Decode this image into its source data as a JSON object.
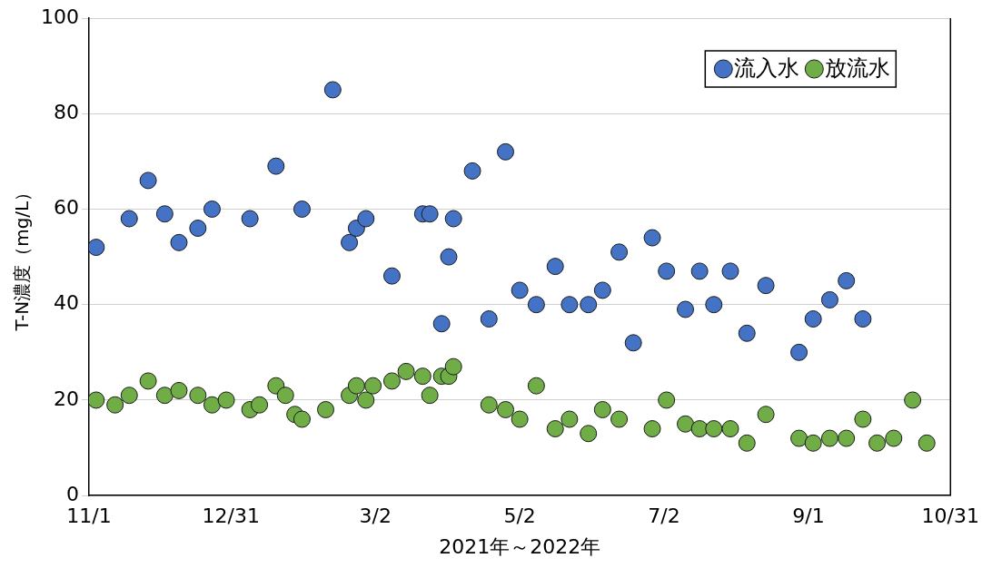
{
  "chart_data": {
    "type": "scatter",
    "xlabel": "2021年～2022年",
    "ylabel": "T-N濃度（mg/L）",
    "xlim": [
      "2021-11-01",
      "2022-10-31"
    ],
    "xticks": [
      {
        "value": "2021-11-01",
        "label": "11/1"
      },
      {
        "value": "2021-12-31",
        "label": "12/31"
      },
      {
        "value": "2022-03-02",
        "label": "3/2"
      },
      {
        "value": "2022-05-02",
        "label": "5/2"
      },
      {
        "value": "2022-07-02",
        "label": "7/2"
      },
      {
        "value": "2022-09-01",
        "label": "9/1"
      },
      {
        "value": "2022-10-31",
        "label": "10/31"
      }
    ],
    "ylim": [
      0,
      100
    ],
    "yticks": [
      0,
      20,
      40,
      60,
      80,
      100
    ],
    "grid": "y",
    "legend": "top right",
    "marker": "circle",
    "series": [
      {
        "name": "流入水",
        "color": "#4472c4",
        "x": [
          "2021-11-04",
          "2021-11-18",
          "2021-11-26",
          "2021-12-03",
          "2021-12-09",
          "2021-12-17",
          "2021-12-23",
          "2022-01-08",
          "2022-01-19",
          "2022-01-30",
          "2022-02-12",
          "2022-02-19",
          "2022-02-22",
          "2022-02-26",
          "2022-03-09",
          "2022-03-22",
          "2022-03-25",
          "2022-03-30",
          "2022-04-02",
          "2022-04-04",
          "2022-04-12",
          "2022-04-19",
          "2022-04-26",
          "2022-05-02",
          "2022-05-09",
          "2022-05-17",
          "2022-05-23",
          "2022-05-31",
          "2022-06-06",
          "2022-06-13",
          "2022-06-19",
          "2022-06-27",
          "2022-07-03",
          "2022-07-11",
          "2022-07-17",
          "2022-07-23",
          "2022-07-30",
          "2022-08-06",
          "2022-08-14",
          "2022-08-28",
          "2022-09-03",
          "2022-09-10",
          "2022-09-17",
          "2022-09-24"
        ],
        "values": [
          52,
          58,
          66,
          59,
          53,
          56,
          60,
          58,
          69,
          60,
          85,
          53,
          56,
          58,
          46,
          59,
          59,
          36,
          50,
          58,
          68,
          37,
          72,
          43,
          40,
          48,
          40,
          40,
          43,
          51,
          32,
          54,
          47,
          39,
          47,
          40,
          47,
          34,
          44,
          30,
          37,
          41,
          45,
          37
        ]
      },
      {
        "name": "放流水",
        "color": "#70ad47",
        "x": [
          "2021-11-04",
          "2021-11-12",
          "2021-11-18",
          "2021-11-26",
          "2021-12-03",
          "2021-12-09",
          "2021-12-17",
          "2021-12-23",
          "2021-12-29",
          "2022-01-08",
          "2022-01-12",
          "2022-01-19",
          "2022-01-23",
          "2022-01-27",
          "2022-01-30",
          "2022-02-09",
          "2022-02-19",
          "2022-02-22",
          "2022-02-26",
          "2022-03-01",
          "2022-03-09",
          "2022-03-15",
          "2022-03-22",
          "2022-03-25",
          "2022-03-30",
          "2022-04-02",
          "2022-04-04",
          "2022-04-19",
          "2022-04-26",
          "2022-05-02",
          "2022-05-09",
          "2022-05-17",
          "2022-05-23",
          "2022-05-31",
          "2022-06-06",
          "2022-06-13",
          "2022-06-27",
          "2022-07-03",
          "2022-07-11",
          "2022-07-17",
          "2022-07-23",
          "2022-07-30",
          "2022-08-06",
          "2022-08-14",
          "2022-08-28",
          "2022-09-03",
          "2022-09-10",
          "2022-09-17",
          "2022-09-24",
          "2022-09-30",
          "2022-10-07",
          "2022-10-15",
          "2022-10-21"
        ],
        "values": [
          20,
          19,
          21,
          24,
          21,
          22,
          21,
          19,
          20,
          18,
          19,
          23,
          21,
          17,
          16,
          18,
          21,
          23,
          20,
          23,
          24,
          26,
          25,
          21,
          25,
          25,
          27,
          19,
          18,
          16,
          23,
          14,
          16,
          13,
          18,
          16,
          14,
          20,
          15,
          14,
          14,
          14,
          11,
          17,
          12,
          11,
          12,
          12,
          16,
          11,
          12,
          20,
          11
        ]
      }
    ]
  }
}
